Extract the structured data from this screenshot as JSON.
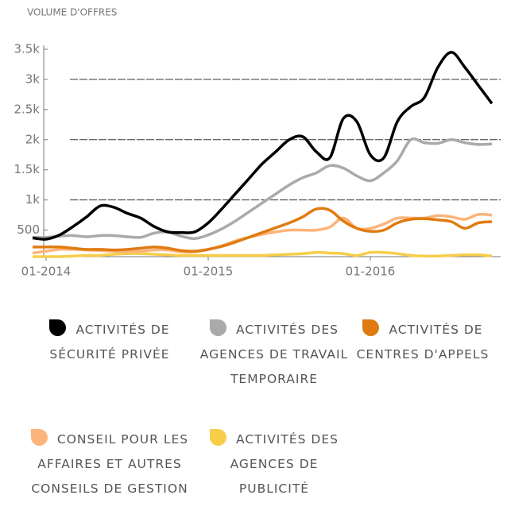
{
  "chart_data": {
    "type": "line",
    "y_label": "VOLUME D'OFFRES",
    "categories": [
      null,
      "01-2014",
      null,
      null,
      null,
      null,
      null,
      null,
      null,
      null,
      null,
      null,
      null,
      "01-2015",
      null,
      null,
      null,
      null,
      null,
      null,
      null,
      null,
      null,
      null,
      null,
      "01-2016",
      null,
      null,
      null,
      null,
      null,
      null,
      null,
      null,
      null
    ],
    "ylim": [
      60,
      3500
    ],
    "yticks": [
      500,
      {
        "value": 1000,
        "label": "1k"
      },
      {
        "value": 1500,
        "label": "1.5k"
      },
      {
        "value": 2000,
        "label": "2k"
      },
      {
        "value": 2500,
        "label": "2.5k"
      },
      {
        "value": 3000,
        "label": "3k"
      },
      {
        "value": 3500,
        "label": "3.5k"
      }
    ],
    "grid": true,
    "series": [
      {
        "name": "ACTIVITÉS DE SÉCURITÉ PRIVÉE",
        "color": "#000000",
        "values": [
          370,
          350,
          420,
          560,
          720,
          900,
          880,
          780,
          700,
          560,
          470,
          460,
          470,
          620,
          850,
          1100,
          1350,
          1600,
          1800,
          2000,
          2050,
          1800,
          1700,
          2350,
          2300,
          1750,
          1700,
          2300,
          2550,
          2700,
          3200,
          3450,
          3200,
          2900,
          2600
        ]
      },
      {
        "name": "ACTIVITÉS DES AGENCES DE TRAVAIL TEMPORAIRE",
        "color": "#aaaaaa",
        "values": [
          380,
          380,
          400,
          410,
          390,
          410,
          410,
          390,
          380,
          450,
          470,
          400,
          360,
          420,
          520,
          650,
          800,
          950,
          1100,
          1250,
          1370,
          1450,
          1570,
          1530,
          1400,
          1320,
          1450,
          1650,
          2000,
          1950,
          1940,
          2000,
          1950,
          1920,
          1930
        ]
      },
      {
        "name": "ACTIVITÉS DE CENTRES D'APPELS",
        "color": "#e07b10",
        "values": [
          220,
          220,
          220,
          200,
          180,
          180,
          170,
          180,
          200,
          220,
          200,
          160,
          150,
          180,
          230,
          300,
          380,
          460,
          540,
          620,
          720,
          850,
          830,
          650,
          530,
          480,
          500,
          620,
          680,
          690,
          670,
          640,
          530,
          620,
          640
        ]
      },
      {
        "name": "CONSEIL POUR LES AFFAIRES ET AUTRES CONSEILS DE GESTION",
        "color": "#fcb47a",
        "values": [
          120,
          150,
          180,
          180,
          170,
          160,
          150,
          140,
          150,
          170,
          170,
          140,
          140,
          180,
          240,
          320,
          380,
          430,
          470,
          500,
          500,
          500,
          550,
          700,
          530,
          530,
          600,
          700,
          700,
          700,
          740,
          720,
          680,
          760,
          750
        ]
      },
      {
        "name": "ACTIVITÉS DES AGENCES DE PUBLICITÉ",
        "color": "#f7cd4a",
        "values": [
          60,
          60,
          60,
          70,
          80,
          80,
          100,
          110,
          110,
          100,
          90,
          80,
          80,
          80,
          80,
          80,
          80,
          80,
          90,
          100,
          110,
          130,
          120,
          110,
          80,
          130,
          130,
          110,
          80,
          70,
          70,
          80,
          90,
          90,
          70
        ]
      }
    ]
  }
}
